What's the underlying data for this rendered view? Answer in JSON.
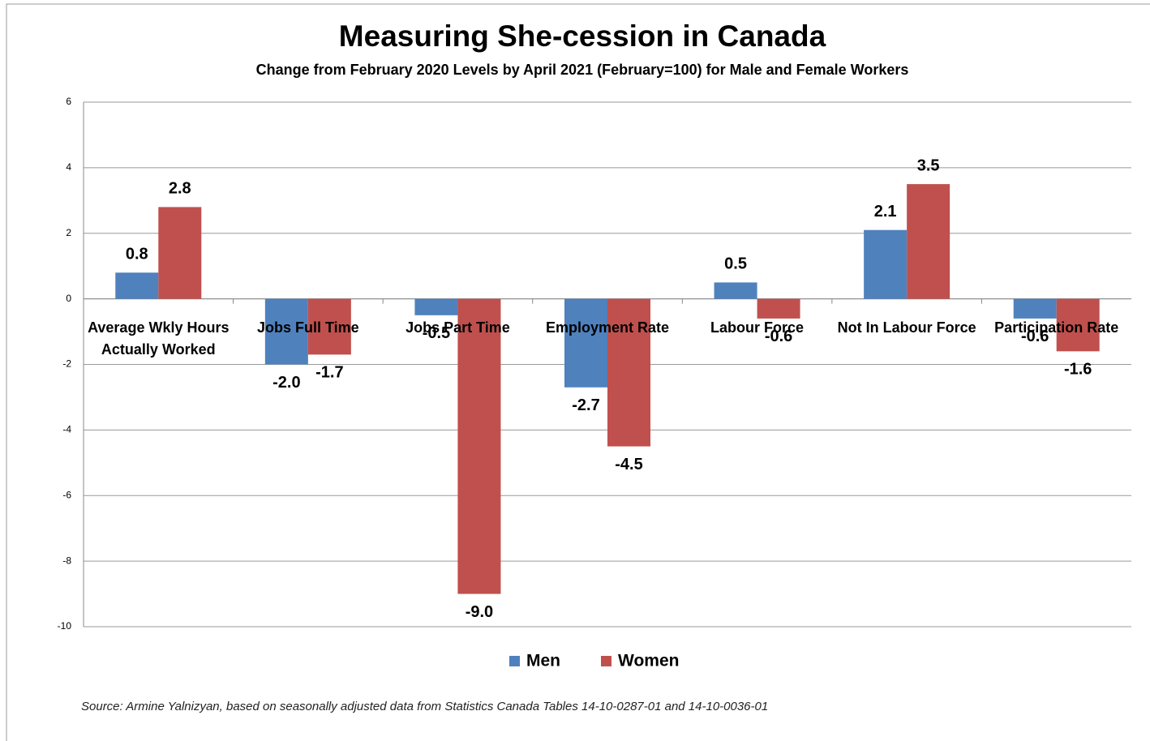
{
  "chart_data": {
    "type": "bar",
    "title": "Measuring She-cession in Canada",
    "subtitle": "Change from February 2020 Levels by April 2021 (February=100) for Male and Female Workers",
    "categories": [
      "Average Wkly Hours Actually Worked",
      "Jobs Full Time",
      "Jobs Part Time",
      "Employment Rate",
      "Labour Force",
      "Not In Labour Force",
      "Participation Rate"
    ],
    "series": [
      {
        "name": "Men",
        "color": "#4f81bd",
        "values": [
          0.8,
          -2.0,
          -0.5,
          -2.7,
          0.5,
          2.1,
          -0.6
        ],
        "value_labels": [
          "0.8",
          "-2.0",
          "-0.5",
          "-2.7",
          "0.5",
          "2.1",
          "-0.6"
        ]
      },
      {
        "name": "Women",
        "color": "#c0504d",
        "values": [
          2.8,
          -1.7,
          -9.0,
          -4.5,
          -0.6,
          3.5,
          -1.6
        ],
        "value_labels": [
          "2.8",
          "-1.7",
          "-9.0",
          "-4.5",
          "-0.6",
          "3.5",
          "-1.6"
        ]
      }
    ],
    "ylim": [
      -10,
      6
    ],
    "yticks": [
      -10,
      -8,
      -6,
      -4,
      -2,
      0,
      2,
      4,
      6
    ],
    "grid": true,
    "legend": "bottom",
    "source": "Source: Armine Yalnizyan, based on seasonally adjusted data from Statistics Canada Tables 14-10-0287-01 and 14-10-0036-01"
  }
}
